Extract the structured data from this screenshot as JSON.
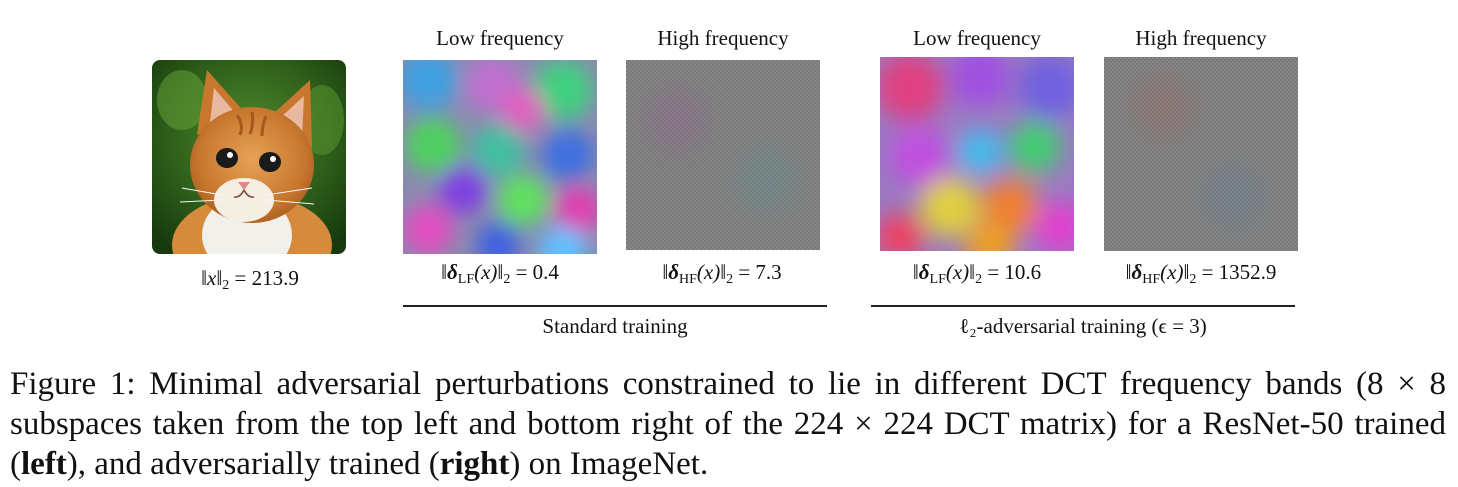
{
  "panels": {
    "kitten": {
      "norm_lhs": "‖x‖",
      "norm_sub": "2",
      "norm_rhs": "= 213.9"
    },
    "std_low": {
      "heading": "Low frequency",
      "delta": "δ",
      "sub": "LF",
      "arg": "(x)‖",
      "norm_sub": "2",
      "norm_rhs": "= 0.4"
    },
    "std_high": {
      "heading": "High frequency",
      "delta": "δ",
      "sub": "HF",
      "arg": "(x)‖",
      "norm_sub": "2",
      "norm_rhs": "= 7.3"
    },
    "adv_low": {
      "heading": "Low frequency",
      "delta": "δ",
      "sub": "LF",
      "arg": "(x)‖",
      "norm_sub": "2",
      "norm_rhs": "= 10.6"
    },
    "adv_high": {
      "heading": "High frequency",
      "delta": "δ",
      "sub": "HF",
      "arg": "(x)‖",
      "norm_sub": "2",
      "norm_rhs": "= 1352.9"
    }
  },
  "groups": {
    "standard": "Standard training",
    "adversarial": "ℓ₂-adversarial training (ϵ = 3)"
  },
  "caption": {
    "part1": "Figure 1: Minimal adversarial perturbations constrained to lie in different DCT frequency bands (8 × 8 subspaces taken from the top left and bottom right of the 224 × 224 DCT matrix) for a ResNet-50 trained (",
    "bold1": "left",
    "part2": "), and adversarially trained (",
    "bold2": "right",
    "part3": ") on ImageNet."
  }
}
